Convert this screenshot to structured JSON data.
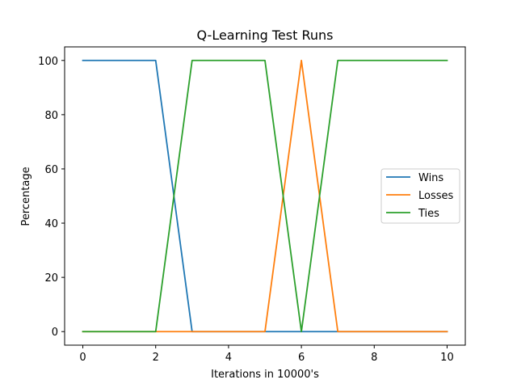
{
  "chart_data": {
    "type": "line",
    "title": "Q-Learning Test Runs",
    "xlabel": "Iterations in 10000's",
    "ylabel": "Percentage",
    "xlim": [
      -0.5,
      10.5
    ],
    "ylim": [
      -5,
      105
    ],
    "xticks": [
      0,
      2,
      4,
      6,
      8,
      10
    ],
    "yticks": [
      0,
      20,
      40,
      60,
      80,
      100
    ],
    "grid": false,
    "legend_position": "center-right",
    "x": [
      0,
      1,
      2,
      3,
      4,
      5,
      6,
      7,
      8,
      9,
      10
    ],
    "series": [
      {
        "name": "Wins",
        "color": "#1f77b4",
        "values": [
          100,
          100,
          100,
          0,
          0,
          0,
          0,
          0,
          0,
          0,
          0
        ]
      },
      {
        "name": "Losses",
        "color": "#ff7f0e",
        "values": [
          0,
          0,
          0,
          0,
          0,
          0,
          100,
          0,
          0,
          0,
          0
        ]
      },
      {
        "name": "Ties",
        "color": "#2ca02c",
        "values": [
          0,
          0,
          0,
          100,
          100,
          100,
          0,
          100,
          100,
          100,
          100
        ]
      }
    ]
  }
}
